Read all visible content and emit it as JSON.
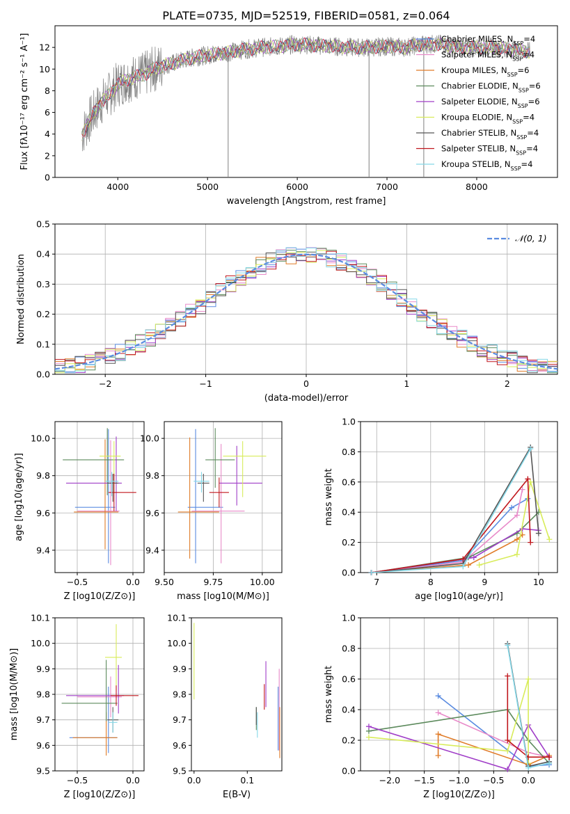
{
  "title": "PLATE=0735, MJD=52519, FIBERID=0581, z=0.064",
  "colors": {
    "Chabrier MILES": "#5a8be0",
    "Salpeter MILES": "#e88ac9",
    "Kroupa MILES": "#e07b27",
    "Chabrier ELODIE": "#5c8a5c",
    "Salpeter ELODIE": "#a03ec8",
    "Kroupa ELODIE": "#d8ec5a",
    "Chabrier STELIB": "#555555",
    "Salpeter STELIB": "#c0161c",
    "Kroupa STELIB": "#85d8e8",
    "data": "#7f7f7f",
    "normal": "#5a8be0"
  },
  "legend_entries": [
    {
      "model": "Chabrier MILES",
      "label": "Chabrier MILES, N",
      "nssp": "=4"
    },
    {
      "model": "Salpeter MILES",
      "label": "Salpeter MILES, N",
      "nssp": "=4"
    },
    {
      "model": "Kroupa MILES",
      "label": "Kroupa MILES, N",
      "nssp": "=6"
    },
    {
      "model": "Chabrier ELODIE",
      "label": "Chabrier ELODIE, N",
      "nssp": "=6"
    },
    {
      "model": "Salpeter ELODIE",
      "label": "Salpeter ELODIE, N",
      "nssp": "=6"
    },
    {
      "model": "Kroupa ELODIE",
      "label": "Kroupa ELODIE, N",
      "nssp": "=4"
    },
    {
      "model": "Chabrier STELIB",
      "label": "Chabrier STELIB, N",
      "nssp": "=4"
    },
    {
      "model": "Salpeter STELIB",
      "label": "Salpeter STELIB, N",
      "nssp": "=4"
    },
    {
      "model": "Kroupa STELIB",
      "label": "Kroupa STELIB, N",
      "nssp": "=4"
    }
  ],
  "chart_data": [
    {
      "id": "spectrum",
      "type": "line",
      "xlabel": "wavelength [Angstrom, rest frame]",
      "ylabel": "Flux [fλ10⁻¹⁷ erg cm⁻² s⁻¹ A⁻¹]",
      "xlim": [
        3300,
        8900
      ],
      "ylim": [
        0,
        14
      ],
      "xticks": [
        4000,
        5000,
        6000,
        7000,
        8000
      ],
      "yticks": [
        0,
        2,
        4,
        6,
        8,
        10,
        12
      ],
      "grid": false,
      "legend": "right",
      "model_continuum": {
        "x": [
          3600,
          3700,
          3800,
          3900,
          4000,
          4100,
          4200,
          4300,
          4400,
          4500,
          4600,
          4800,
          5000,
          5200,
          5400,
          5600,
          5800,
          6000,
          6200,
          6400,
          6600,
          6800,
          7000,
          7200,
          7400,
          7600,
          7800,
          8000,
          8200,
          8400,
          8600
        ],
        "y": [
          4.0,
          5.5,
          6.8,
          7.6,
          8.6,
          9.0,
          9.3,
          9.5,
          10.0,
          10.3,
          10.5,
          11.0,
          11.3,
          11.5,
          11.8,
          12.0,
          12.1,
          12.3,
          12.2,
          12.1,
          12.0,
          12.0,
          12.1,
          12.0,
          12.3,
          12.3,
          12.0,
          12.0,
          12.0,
          11.8,
          11.6
        ]
      }
    },
    {
      "id": "residuals",
      "type": "line",
      "xlabel": "(data-model)/error",
      "ylabel": "Normed distribution",
      "xlim": [
        -2.5,
        2.5
      ],
      "ylim": [
        0,
        0.5
      ],
      "xticks": [
        -2,
        -1,
        0,
        1,
        2
      ],
      "yticks": [
        0.0,
        0.1,
        0.2,
        0.3,
        0.4,
        0.5
      ],
      "grid": true,
      "legend": "top-right",
      "legend_label": "𝒩(0, 1)",
      "series": [
        {
          "model": "Chabrier MILES",
          "x": [
            -2.5,
            2.5
          ],
          "y": [
            0.02,
            0.02
          ]
        }
      ]
    },
    {
      "id": "age-vs-Z",
      "type": "scatter",
      "xlabel": "Z [log10(Z/Z⊙)]",
      "ylabel": "age [log10(age/yr)]",
      "xlim": [
        -0.7,
        0.1
      ],
      "ylim": [
        9.28,
        10.09
      ],
      "xticks": [
        -0.5,
        0.0
      ],
      "yticks": [
        9.4,
        9.6,
        9.8,
        10.0
      ],
      "grid": true,
      "points": [
        {
          "model": "Chabrier MILES",
          "x": -0.22,
          "y": 9.63,
          "xerr": [
            0.3,
            0.06
          ],
          "yerr": [
            0.3,
            0.42
          ]
        },
        {
          "model": "Salpeter MILES",
          "x": -0.2,
          "y": 9.61,
          "xerr": [
            0.3,
            0.08
          ],
          "yerr": [
            0.29,
            0.38
          ]
        },
        {
          "model": "Kroupa MILES",
          "x": -0.25,
          "y": 9.605,
          "xerr": [
            0.28,
            0.12
          ],
          "yerr": [
            0.2,
            0.39
          ]
        },
        {
          "model": "Chabrier ELODIE",
          "x": -0.23,
          "y": 9.885,
          "xerr": [
            0.4,
            0.15
          ],
          "yerr": [
            0.19,
            0.17
          ]
        },
        {
          "model": "Salpeter ELODIE",
          "x": -0.15,
          "y": 9.76,
          "xerr": [
            0.45,
            0.05
          ],
          "yerr": [
            0.15,
            0.25
          ]
        },
        {
          "model": "Kroupa ELODIE",
          "x": -0.17,
          "y": 9.905,
          "xerr": [
            0.13,
            0.06
          ],
          "yerr": [
            0.2,
            0.08
          ]
        },
        {
          "model": "Chabrier STELIB",
          "x": -0.18,
          "y": 9.76,
          "xerr": [
            0.05,
            0.05
          ],
          "yerr": [
            0.1,
            0.05
          ]
        },
        {
          "model": "Salpeter STELIB",
          "x": -0.17,
          "y": 9.71,
          "xerr": [
            0.05,
            0.2
          ],
          "yerr": [
            0.1,
            0.1
          ]
        },
        {
          "model": "Kroupa STELIB",
          "x": -0.19,
          "y": 9.77,
          "xerr": [
            0.06,
            0.06
          ],
          "yerr": [
            0.08,
            0.05
          ]
        }
      ]
    },
    {
      "id": "age-vs-mass",
      "type": "scatter",
      "xlabel": "mass [log10(M/M⊙)]",
      "ylabel": "",
      "xlim": [
        9.5,
        10.1
      ],
      "ylim": [
        9.28,
        10.09
      ],
      "xticks": [
        9.5,
        9.75,
        10.0
      ],
      "xticklabels": [
        "9.50",
        "9.75",
        "10.00"
      ],
      "yticks": [
        9.4,
        9.6,
        9.8,
        10.0
      ],
      "grid": true,
      "points": [
        {
          "model": "Chabrier MILES",
          "x": 9.66,
          "y": 9.63,
          "xerr": [
            0.04,
            0.14
          ],
          "yerr": [
            0.3,
            0.42
          ]
        },
        {
          "model": "Salpeter MILES",
          "x": 9.79,
          "y": 9.61,
          "xerr": [
            0.15,
            0.12
          ],
          "yerr": [
            0.28,
            0.36
          ]
        },
        {
          "model": "Kroupa MILES",
          "x": 9.63,
          "y": 9.605,
          "xerr": [
            0.06,
            0.15
          ],
          "yerr": [
            0.25,
            0.4
          ]
        },
        {
          "model": "Chabrier ELODIE",
          "x": 9.76,
          "y": 9.885,
          "xerr": [
            0.05,
            0.1
          ],
          "yerr": [
            0.15,
            0.17
          ]
        },
        {
          "model": "Salpeter ELODIE",
          "x": 9.87,
          "y": 9.76,
          "xerr": [
            0.09,
            0.13
          ],
          "yerr": [
            0.12,
            0.2
          ]
        },
        {
          "model": "Kroupa ELODIE",
          "x": 9.9,
          "y": 9.905,
          "xerr": [
            0.1,
            0.12
          ],
          "yerr": [
            0.22,
            0.08
          ]
        },
        {
          "model": "Chabrier STELIB",
          "x": 9.7,
          "y": 9.76,
          "xerr": [
            0.03,
            0.03
          ],
          "yerr": [
            0.1,
            0.05
          ]
        },
        {
          "model": "Salpeter STELIB",
          "x": 9.78,
          "y": 9.71,
          "xerr": [
            0.05,
            0.05
          ],
          "yerr": [
            0.08,
            0.08
          ]
        },
        {
          "model": "Kroupa STELIB",
          "x": 9.69,
          "y": 9.77,
          "xerr": [
            0.04,
            0.04
          ],
          "yerr": [
            0.06,
            0.05
          ]
        }
      ]
    },
    {
      "id": "mass-weight-vs-age",
      "type": "line",
      "xlabel": "age [log10(age/yr)]",
      "ylabel": "mass weight",
      "xlim": [
        6.7,
        10.35
      ],
      "ylim": [
        0.0,
        1.0
      ],
      "xticks": [
        7,
        8,
        9,
        10
      ],
      "yticks": [
        0.0,
        0.2,
        0.4,
        0.6,
        0.8,
        1.0
      ],
      "grid": true,
      "series": [
        {
          "model": "Chabrier MILES",
          "x": [
            6.9,
            8.6,
            9.5,
            9.8
          ],
          "y": [
            0.0,
            0.08,
            0.43,
            0.49
          ]
        },
        {
          "model": "Salpeter MILES",
          "x": [
            6.9,
            8.6,
            9.6,
            9.7
          ],
          "y": [
            0.0,
            0.07,
            0.38,
            0.55
          ]
        },
        {
          "model": "Kroupa MILES",
          "x": [
            6.9,
            8.7,
            9.6,
            9.7
          ],
          "y": [
            0.0,
            0.05,
            0.22,
            0.25
          ]
        },
        {
          "model": "Chabrier ELODIE",
          "x": [
            6.9,
            8.7,
            9.6,
            10.0
          ],
          "y": [
            0.0,
            0.1,
            0.26,
            0.4
          ]
        },
        {
          "model": "Salpeter ELODIE",
          "x": [
            6.9,
            8.8,
            9.7,
            10.0
          ],
          "y": [
            0.0,
            0.1,
            0.29,
            0.28
          ]
        },
        {
          "model": "Kroupa ELODIE",
          "x": [
            8.9,
            9.6,
            9.85,
            10.2
          ],
          "y": [
            0.05,
            0.12,
            0.6,
            0.22
          ]
        },
        {
          "model": "Chabrier STELIB",
          "x": [
            6.9,
            8.6,
            9.85,
            10.0
          ],
          "y": [
            0.0,
            0.06,
            0.83,
            0.26
          ]
        },
        {
          "model": "Salpeter STELIB",
          "x": [
            6.9,
            8.6,
            9.8,
            9.85
          ],
          "y": [
            0.0,
            0.09,
            0.62,
            0.2
          ]
        },
        {
          "model": "Kroupa STELIB",
          "x": [
            6.9,
            8.6,
            9.85
          ],
          "y": [
            0.0,
            0.04,
            0.82
          ]
        }
      ]
    },
    {
      "id": "mass-vs-Z",
      "type": "scatter",
      "xlabel": "Z [log10(Z/Z⊙)]",
      "ylabel": "mass [log10(M/M⊙)]",
      "xlim": [
        -0.7,
        0.1
      ],
      "ylim": [
        9.5,
        10.1
      ],
      "xticks": [
        -0.5,
        0.0
      ],
      "yticks": [
        9.5,
        9.6,
        9.7,
        9.8,
        9.9,
        10.0,
        10.1
      ],
      "grid": true,
      "points": [
        {
          "model": "Chabrier MILES",
          "x": -0.22,
          "y": 9.63,
          "xerr": [
            0.35,
            0.08
          ],
          "yerr": [
            0.06,
            0.2
          ]
        },
        {
          "model": "Salpeter MILES",
          "x": -0.2,
          "y": 9.79,
          "xerr": [
            0.3,
            0.1
          ],
          "yerr": [
            0.08,
            0.08
          ]
        },
        {
          "model": "Kroupa MILES",
          "x": -0.24,
          "y": 9.63,
          "xerr": [
            0.3,
            0.1
          ],
          "yerr": [
            0.07,
            0.1
          ]
        },
        {
          "model": "Chabrier ELODIE",
          "x": -0.24,
          "y": 9.765,
          "xerr": [
            0.4,
            0.1
          ],
          "yerr": [
            0.07,
            0.17
          ]
        },
        {
          "model": "Salpeter ELODIE",
          "x": -0.13,
          "y": 9.795,
          "xerr": [
            0.47,
            0.05
          ],
          "yerr": [
            0.07,
            0.12
          ]
        },
        {
          "model": "Kroupa ELODIE",
          "x": -0.15,
          "y": 9.945,
          "xerr": [
            0.1,
            0.05
          ],
          "yerr": [
            0.13,
            0.13
          ]
        },
        {
          "model": "Chabrier STELIB",
          "x": -0.18,
          "y": 9.7,
          "xerr": [
            0.05,
            0.05
          ],
          "yerr": [
            0.05,
            0.05
          ]
        },
        {
          "model": "Salpeter STELIB",
          "x": -0.15,
          "y": 9.795,
          "xerr": [
            0.05,
            0.2
          ],
          "yerr": [
            0.04,
            0.04
          ]
        },
        {
          "model": "Kroupa STELIB",
          "x": -0.18,
          "y": 9.69,
          "xerr": [
            0.04,
            0.04
          ],
          "yerr": [
            0.04,
            0.04
          ]
        }
      ]
    },
    {
      "id": "mass-vs-ebv",
      "type": "scatter",
      "xlabel": "E(B-V)",
      "ylabel": "",
      "xlim": [
        -0.005,
        0.165
      ],
      "ylim": [
        9.5,
        10.1
      ],
      "xticks": [
        0.0,
        0.1
      ],
      "xticklabels": [
        "0.0",
        "0.1"
      ],
      "yticks": [
        9.5,
        9.6,
        9.7,
        9.8,
        9.9,
        10.0,
        10.1
      ],
      "grid": false,
      "points": [
        {
          "model": "Chabrier MILES",
          "x": 0.158,
          "y": 9.7,
          "xerr": [
            0,
            0
          ],
          "yerr": [
            0.12,
            0.13
          ]
        },
        {
          "model": "Salpeter MILES",
          "x": 0.16,
          "y": 9.75,
          "xerr": [
            0,
            0
          ],
          "yerr": [
            0.17,
            0.15
          ]
        },
        {
          "model": "Kroupa MILES",
          "x": 0.161,
          "y": 9.65,
          "xerr": [
            0,
            0
          ],
          "yerr": [
            0.1,
            0.1
          ]
        },
        {
          "model": "Chabrier ELODIE",
          "x": 0.117,
          "y": 9.7,
          "xerr": [
            0,
            0
          ],
          "yerr": [
            0.04,
            0.05
          ]
        },
        {
          "model": "Salpeter ELODIE",
          "x": 0.135,
          "y": 9.81,
          "xerr": [
            0,
            0
          ],
          "yerr": [
            0.06,
            0.12
          ]
        },
        {
          "model": "Kroupa ELODIE",
          "x": 0.0,
          "y": 9.93,
          "xerr": [
            0,
            0
          ],
          "yerr": [
            0.15,
            0.15
          ]
        },
        {
          "model": "Chabrier STELIB",
          "x": 0.117,
          "y": 9.7,
          "xerr": [
            0,
            0
          ],
          "yerr": [
            0.02,
            0.05
          ]
        },
        {
          "model": "Salpeter STELIB",
          "x": 0.132,
          "y": 9.79,
          "xerr": [
            0,
            0
          ],
          "yerr": [
            0.05,
            0.05
          ]
        },
        {
          "model": "Kroupa STELIB",
          "x": 0.119,
          "y": 9.68,
          "xerr": [
            0,
            0
          ],
          "yerr": [
            0.05,
            0.05
          ]
        }
      ]
    },
    {
      "id": "mass-weight-vs-Z",
      "type": "line",
      "xlabel": "Z [log10(Z/Z⊙)]",
      "ylabel": "mass weight",
      "xlim": [
        -2.42,
        0.42
      ],
      "ylim": [
        0.0,
        1.0
      ],
      "xticks": [
        -2.0,
        -1.5,
        -1.0,
        -0.5,
        0.0
      ],
      "yticks": [
        0.0,
        0.2,
        0.4,
        0.6,
        0.8,
        1.0
      ],
      "grid": true,
      "series": [
        {
          "model": "Chabrier MILES",
          "x": [
            -1.3,
            0.0,
            0.3
          ],
          "y": [
            0.49,
            0.03,
            0.04
          ]
        },
        {
          "model": "Salpeter MILES",
          "x": [
            -1.3,
            0.0,
            0.3
          ],
          "y": [
            0.38,
            0.12,
            0.09
          ]
        },
        {
          "model": "Kroupa MILES",
          "x": [
            -1.3,
            -1.3,
            0.0,
            0.3
          ],
          "y": [
            0.1,
            0.24,
            0.04,
            0.1
          ]
        },
        {
          "model": "Chabrier ELODIE",
          "x": [
            -2.3,
            -0.3,
            0.0,
            0.3
          ],
          "y": [
            0.26,
            0.4,
            0.2,
            0.05
          ]
        },
        {
          "model": "Salpeter ELODIE",
          "x": [
            -2.3,
            -0.3,
            0.0,
            0.3
          ],
          "y": [
            0.29,
            0.01,
            0.3,
            0.09
          ]
        },
        {
          "model": "Kroupa ELODIE",
          "x": [
            -2.3,
            -0.3,
            0.0,
            0.0
          ],
          "y": [
            0.22,
            0.13,
            0.6,
            0.05
          ]
        },
        {
          "model": "Chabrier STELIB",
          "x": [
            -0.3,
            0.0,
            0.3
          ],
          "y": [
            0.83,
            0.03,
            0.06
          ]
        },
        {
          "model": "Salpeter STELIB",
          "x": [
            -0.3,
            -0.3,
            0.0,
            0.3
          ],
          "y": [
            0.62,
            0.2,
            0.09,
            0.09
          ]
        },
        {
          "model": "Kroupa STELIB",
          "x": [
            -0.3,
            0.0,
            0.3
          ],
          "y": [
            0.82,
            0.02,
            0.05
          ]
        }
      ]
    }
  ]
}
